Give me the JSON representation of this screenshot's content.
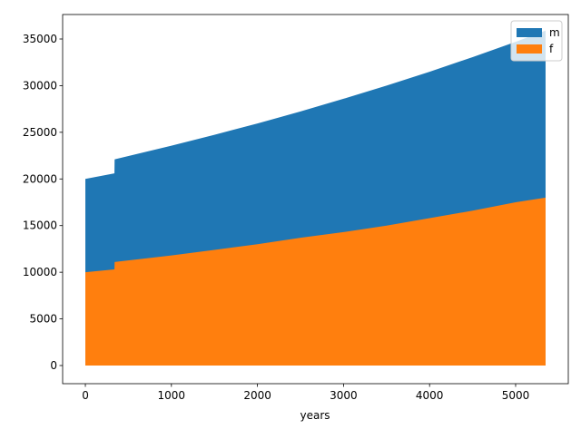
{
  "chart_data": {
    "type": "area",
    "xlabel": "years",
    "x": [
      0,
      338,
      340,
      1000,
      1500,
      2000,
      2500,
      3000,
      3500,
      4000,
      4500,
      5000,
      5348
    ],
    "series": [
      {
        "name": "m",
        "color": "#1f77b4",
        "values": [
          20000,
          20600,
          22100,
          23560,
          24730,
          25950,
          27230,
          28590,
          30010,
          31490,
          33060,
          34700,
          35900
        ]
      },
      {
        "name": "f",
        "color": "#ff7f0e",
        "values": [
          10000,
          10300,
          11100,
          11800,
          12400,
          13000,
          13700,
          14300,
          15000,
          15800,
          16600,
          17500,
          18000
        ]
      }
    ],
    "xlim": [
      -264,
      5612
    ],
    "ylim": [
      -1944,
      37625
    ],
    "xticks": [
      0,
      1000,
      2000,
      3000,
      4000,
      5000
    ],
    "yticks": [
      0,
      5000,
      10000,
      15000,
      20000,
      25000,
      30000,
      35000
    ],
    "legend": "upper right"
  }
}
